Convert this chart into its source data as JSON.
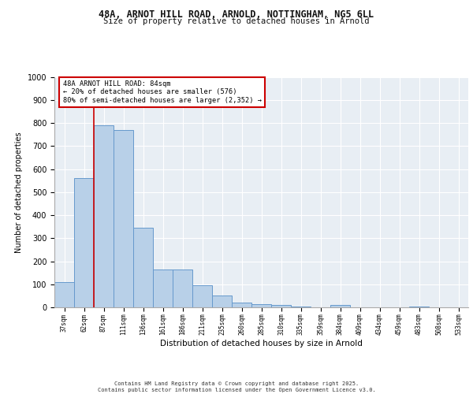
{
  "title_line1": "48A, ARNOT HILL ROAD, ARNOLD, NOTTINGHAM, NG5 6LL",
  "title_line2": "Size of property relative to detached houses in Arnold",
  "xlabel": "Distribution of detached houses by size in Arnold",
  "ylabel": "Number of detached properties",
  "categories": [
    "37sqm",
    "62sqm",
    "87sqm",
    "111sqm",
    "136sqm",
    "161sqm",
    "186sqm",
    "211sqm",
    "235sqm",
    "260sqm",
    "285sqm",
    "310sqm",
    "335sqm",
    "359sqm",
    "384sqm",
    "409sqm",
    "434sqm",
    "459sqm",
    "483sqm",
    "508sqm",
    "533sqm"
  ],
  "values": [
    110,
    560,
    790,
    770,
    345,
    165,
    165,
    95,
    50,
    20,
    15,
    10,
    5,
    0,
    10,
    0,
    0,
    0,
    5,
    0,
    0
  ],
  "bar_color": "#b8d0e8",
  "bar_edgecolor": "#6699cc",
  "vline_x_index": 1.5,
  "vline_color": "#cc0000",
  "annotation_text": "48A ARNOT HILL ROAD: 84sqm\n← 20% of detached houses are smaller (576)\n80% of semi-detached houses are larger (2,352) →",
  "annotation_box_color": "#cc0000",
  "ylim": [
    0,
    1000
  ],
  "yticks": [
    0,
    100,
    200,
    300,
    400,
    500,
    600,
    700,
    800,
    900,
    1000
  ],
  "background_color": "#e8eef4",
  "grid_color": "#ffffff",
  "footer_line1": "Contains HM Land Registry data © Crown copyright and database right 2025.",
  "footer_line2": "Contains public sector information licensed under the Open Government Licence v3.0."
}
